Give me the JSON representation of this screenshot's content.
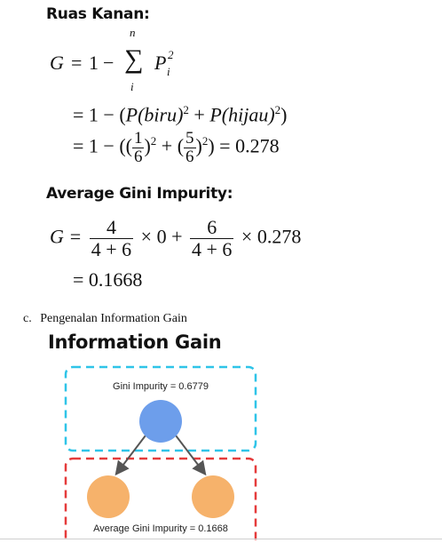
{
  "headings": {
    "ruas_kanan": "Ruas Kanan:",
    "average_gini": "Average Gini Impurity:",
    "info_gain_title": "Information Gain"
  },
  "section": {
    "marker": "c.",
    "text": "Pengenalan Information Gain"
  },
  "formula1": {
    "lhs": "G",
    "eq": "=",
    "one": "1",
    "minus": "−",
    "sum_symbol": "∑",
    "sum_upper": "n",
    "sum_lower": "i",
    "term": "P",
    "term_sub": "i",
    "term_sup": "2"
  },
  "formula2": {
    "prefix": "= 1 − (",
    "p_biru": "P(biru)",
    "sup1": "2",
    "plus": " + ",
    "p_hijau": "P(hijau)",
    "sup2": "2",
    "suffix": ")"
  },
  "formula3": {
    "prefix": "= 1 − ((",
    "f1_num": "1",
    "f1_den": "6",
    "close1": ")",
    "sup1": "2",
    "plus": " + (",
    "f2_num": "5",
    "f2_den": "6",
    "close2": ")",
    "sup2": "2",
    "result": ") = 0.278"
  },
  "formula4": {
    "lhs": "G =",
    "f1_num": "4",
    "f1_den": "4 + 6",
    "mid": "× 0 +",
    "f2_num": "6",
    "f2_den": "4 + 6",
    "tail": "× 0.278"
  },
  "formula5": {
    "text": "= 0.1668"
  },
  "diagram": {
    "top_label": "Gini Impurity = 0.6779",
    "bottom_label": "Average Gini Impurity = 0.1668",
    "colors": {
      "root": "#6d9eeb",
      "child": "#f6b26b",
      "top_border": "#2fc4e8",
      "bottom_border": "#e53b3b",
      "arrow": "#555555"
    }
  }
}
